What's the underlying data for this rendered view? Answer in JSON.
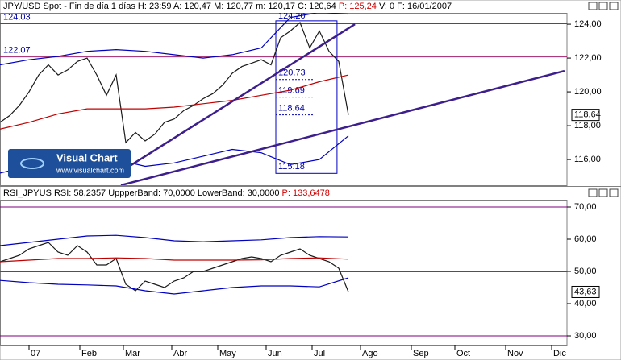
{
  "header": {
    "info": "JPY/USD Spot - Fin de día 1 días H: 23:59 A: 120,47 M: 120,77 m: 120,17 C: 120,64 ",
    "price": "P: 125,24",
    "tail": " V: 0 F: 16/01/2007"
  },
  "rsi_header": {
    "info": "RSI_JPYUS RSI: 58,2357 UppperBand: 70,0000 LowerBand: 30,0000 ",
    "price": "P: 133,6478"
  },
  "logo": {
    "title": "Visual Chart",
    "url": "www.visualchart.com"
  },
  "chart_data": [
    {
      "type": "line",
      "xlim": [
        0,
        234.33
      ],
      "ylim": [
        114.48,
        124.67
      ],
      "yticks": [
        {
          "value": 116,
          "label": "116,00"
        },
        {
          "value": 118,
          "label": "118,00"
        },
        {
          "value": 120,
          "label": "120,00"
        },
        {
          "value": 122,
          "label": "122,00"
        },
        {
          "value": 124,
          "label": "124,00"
        }
      ],
      "series": [
        {
          "color": "#1a1a1a",
          "x": [
            0,
            4,
            8,
            12,
            16,
            20,
            24,
            28,
            32,
            36,
            40,
            44,
            48,
            52,
            56,
            60,
            64,
            68,
            72,
            76,
            80,
            84,
            88,
            92,
            96,
            100,
            104,
            108,
            112,
            116,
            120,
            124,
            128,
            132,
            136,
            140,
            144
          ],
          "values": [
            118.2,
            118.6,
            119.2,
            120.0,
            121.0,
            121.6,
            121.0,
            121.3,
            121.8,
            122.0,
            121.0,
            119.8,
            121.0,
            117.0,
            117.6,
            117.1,
            117.5,
            118.2,
            118.4,
            118.9,
            119.2,
            119.6,
            119.9,
            120.4,
            121.1,
            121.5,
            121.7,
            121.9,
            121.6,
            123.2,
            123.6,
            124.1,
            122.6,
            123.6,
            122.4,
            121.8,
            118.64
          ]
        },
        {
          "color": "#0000c0",
          "x": [
            0,
            12,
            24,
            36,
            48,
            60,
            72,
            84,
            96,
            108,
            120,
            132,
            144
          ],
          "values": [
            121.6,
            121.9,
            122.1,
            122.4,
            122.5,
            122.4,
            122.2,
            122.0,
            122.2,
            122.6,
            124.4,
            124.7,
            124.6
          ]
        },
        {
          "color": "#0000c0",
          "x": [
            0,
            12,
            24,
            36,
            48,
            60,
            72,
            84,
            96,
            108,
            120,
            132,
            144
          ],
          "values": [
            115.2,
            115.6,
            115.9,
            116.1,
            116.0,
            115.6,
            115.8,
            116.2,
            116.6,
            116.4,
            115.7,
            116.0,
            117.4
          ]
        },
        {
          "color": "#c00000",
          "x": [
            0,
            12,
            24,
            36,
            48,
            60,
            72,
            84,
            96,
            108,
            120,
            132,
            144
          ],
          "values": [
            117.8,
            118.2,
            118.7,
            119.0,
            119.0,
            119.0,
            119.1,
            119.3,
            119.5,
            119.8,
            120.1,
            120.6,
            121.0
          ]
        }
      ],
      "hlines": [
        124.03,
        122.07
      ],
      "hline_color": "#a0206a",
      "trendlines": [
        {
          "x": [
            50,
            146.7
          ],
          "values": [
            115.29,
            124
          ]
        },
        {
          "x": [
            50,
            233.3
          ],
          "values": [
            114.48,
            121.24
          ]
        }
      ],
      "trendline_color": "#3c1e8c",
      "fib_x": [
        114,
        139.3
      ],
      "fib_color": "#0000c0",
      "fib_levels": [
        {
          "value": 124.2,
          "label": "124.20"
        },
        120.73,
        119.69,
        118.64,
        115.18
      ],
      "last_label": {
        "value": 118.64,
        "label": "118,64"
      }
    },
    {
      "type": "line",
      "xlim": [
        0,
        234.33
      ],
      "ylim": [
        27.25,
        72.25
      ],
      "yticks": [
        {
          "value": 30,
          "label": "30,00"
        },
        {
          "value": 40,
          "label": "40,00"
        },
        {
          "value": 50,
          "label": "50,00"
        },
        {
          "value": 60,
          "label": "60,00"
        },
        {
          "value": 70,
          "label": "70,00"
        }
      ],
      "series": [
        {
          "color": "#1a1a1a",
          "x": [
            0,
            4,
            8,
            12,
            16,
            20,
            24,
            28,
            32,
            36,
            40,
            44,
            48,
            52,
            56,
            60,
            64,
            68,
            72,
            76,
            80,
            84,
            88,
            92,
            96,
            100,
            104,
            108,
            112,
            116,
            120,
            124,
            128,
            132,
            136,
            140,
            144
          ],
          "values": [
            53,
            54,
            55,
            57,
            58,
            59,
            56,
            55,
            58,
            56,
            52,
            52,
            54,
            46,
            44,
            47,
            46,
            45,
            47,
            48,
            50,
            50,
            51,
            52,
            53,
            54,
            54.5,
            54,
            53,
            55,
            56,
            57,
            55,
            54,
            53,
            51,
            43.63
          ]
        },
        {
          "color": "#0000c0",
          "x": [
            0,
            12,
            24,
            36,
            48,
            60,
            72,
            84,
            96,
            108,
            120,
            132,
            144
          ],
          "values": [
            58,
            59,
            60,
            61,
            61.2,
            60.5,
            59.5,
            59.2,
            59.5,
            59.8,
            60.5,
            60.8,
            60.7
          ]
        },
        {
          "color": "#0000c0",
          "x": [
            0,
            12,
            24,
            36,
            48,
            60,
            72,
            84,
            96,
            108,
            120,
            132,
            144
          ],
          "values": [
            47.2,
            46.5,
            46,
            45.8,
            45.5,
            44,
            43,
            44,
            45,
            45.5,
            45.5,
            45.2,
            48
          ]
        },
        {
          "color": "#c00000",
          "x": [
            0,
            12,
            24,
            36,
            48,
            60,
            72,
            84,
            96,
            108,
            120,
            132,
            144
          ],
          "values": [
            53,
            53.5,
            54,
            54,
            54.2,
            54,
            53.5,
            53.5,
            53.5,
            53.6,
            54,
            54.2,
            53.8
          ]
        }
      ],
      "hlines": [
        70,
        50,
        30
      ],
      "hline_color": "#800080",
      "last_label": {
        "value": 43.63,
        "label": "43,63"
      },
      "xticks": [
        {
          "value": 12,
          "label": "07"
        },
        {
          "value": 33,
          "label": "Feb"
        },
        {
          "value": 51,
          "label": "Mar"
        },
        {
          "value": 71,
          "label": "Abr"
        },
        {
          "value": 90,
          "label": "May"
        },
        {
          "value": 110,
          "label": "Jun"
        },
        {
          "value": 129,
          "label": "Jul"
        },
        {
          "value": 149,
          "label": "Ago"
        },
        {
          "value": 170,
          "label": "Sep"
        },
        {
          "value": 188,
          "label": "Oct"
        },
        {
          "value": 209,
          "label": "Nov"
        },
        {
          "value": 228,
          "label": "Dic"
        }
      ]
    }
  ]
}
